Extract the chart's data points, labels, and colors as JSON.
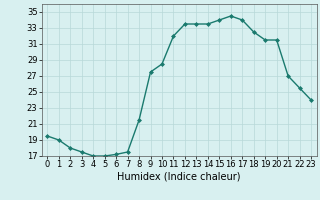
{
  "x": [
    0,
    1,
    2,
    3,
    4,
    5,
    6,
    7,
    8,
    9,
    10,
    11,
    12,
    13,
    14,
    15,
    16,
    17,
    18,
    19,
    20,
    21,
    22,
    23
  ],
  "y": [
    19.5,
    19.0,
    18.0,
    17.5,
    17.0,
    17.0,
    17.2,
    17.5,
    21.5,
    27.5,
    28.5,
    32.0,
    33.5,
    33.5,
    33.5,
    34.0,
    34.5,
    34.0,
    32.5,
    31.5,
    31.5,
    27.0,
    25.5,
    24.0
  ],
  "line_color": "#1a7a6e",
  "marker": "D",
  "marker_size": 2,
  "bg_color": "#d8f0f0",
  "grid_color": "#b8d8d8",
  "xlabel": "Humidex (Indice chaleur)",
  "ylim": [
    17,
    36
  ],
  "xlim": [
    -0.5,
    23.5
  ],
  "yticks": [
    17,
    19,
    21,
    23,
    25,
    27,
    29,
    31,
    33,
    35
  ],
  "xticks": [
    0,
    1,
    2,
    3,
    4,
    5,
    6,
    7,
    8,
    9,
    10,
    11,
    12,
    13,
    14,
    15,
    16,
    17,
    18,
    19,
    20,
    21,
    22,
    23
  ],
  "xlabel_fontsize": 7,
  "tick_fontsize": 6,
  "line_width": 1.0
}
